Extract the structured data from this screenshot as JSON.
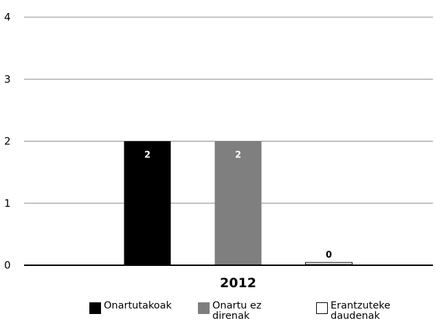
{
  "chart_data": {
    "type": "bar",
    "categories": [
      "2012"
    ],
    "series": [
      {
        "name": "Onartutakoak",
        "values": [
          2
        ],
        "color": "#000000"
      },
      {
        "name": "Onartu ez\ndirenak",
        "values": [
          2
        ],
        "color": "#7f7f7f"
      },
      {
        "name": "Erantzuteke\ndaudenak",
        "values": [
          0
        ],
        "color": "#ffffff"
      }
    ],
    "data_labels": [
      "2",
      "2",
      "0"
    ],
    "yticks": [
      "0",
      "1",
      "2",
      "3",
      "4"
    ],
    "ylim": [
      0,
      4
    ],
    "grid": true,
    "legend_position": "bottom",
    "title": "",
    "xlabel": "",
    "ylabel": ""
  }
}
